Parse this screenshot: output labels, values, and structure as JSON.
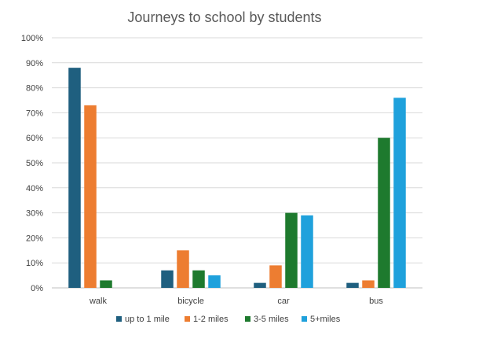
{
  "chart_data": {
    "type": "bar",
    "title": "Journeys to school by students",
    "categories": [
      "walk",
      "bicycle",
      "car",
      "bus"
    ],
    "ylim": [
      0,
      100
    ],
    "y_ticks": [
      "0%",
      "10%",
      "20%",
      "30%",
      "40%",
      "50%",
      "60%",
      "70%",
      "80%",
      "90%",
      "100%"
    ],
    "grid": true,
    "legend_position": "bottom",
    "series": [
      {
        "name": "up to 1 mile",
        "color": "#1f5f7f",
        "values": [
          88,
          7,
          2,
          2
        ]
      },
      {
        "name": "1-2 miles",
        "color": "#ed7d31",
        "values": [
          73,
          15,
          9,
          3
        ]
      },
      {
        "name": "3-5 miles",
        "color": "#1e7a2e",
        "values": [
          3,
          7,
          30,
          60
        ]
      },
      {
        "name": "5+miles",
        "color": "#1fa1dc",
        "values": [
          0,
          5,
          29,
          76
        ]
      }
    ]
  }
}
